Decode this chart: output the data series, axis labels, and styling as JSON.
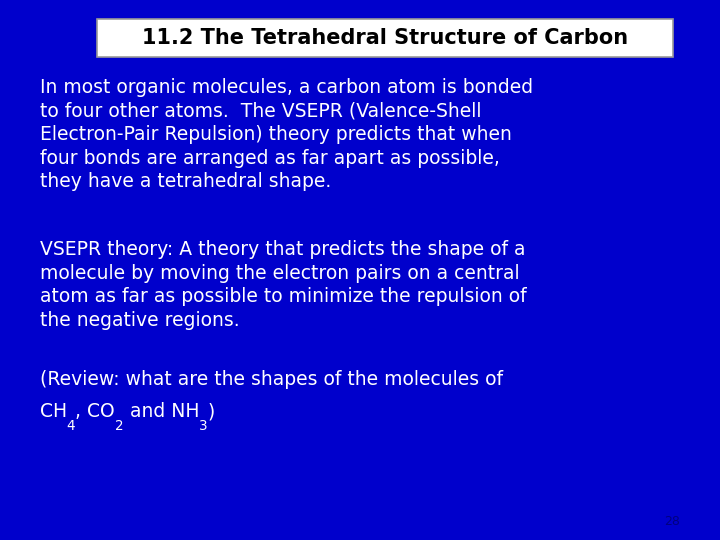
{
  "bg_color": "#0000CC",
  "title_text": "11.2 The Tetrahedral Structure of Carbon",
  "title_bg": "#FFFFFF",
  "title_border": "#999999",
  "title_color": "#000000",
  "title_fontsize": 15,
  "body_color": "#FFFFFF",
  "body_fontsize": 13.5,
  "page_number": "28",
  "page_color": "#000080",
  "paragraph1": "In most organic molecules, a carbon atom is bonded\nto four other atoms.  The VSEPR (Valence-Shell\nElectron-Pair Repulsion) theory predicts that when\nfour bonds are arranged as far apart as possible,\nthey have a tetrahedral shape.",
  "paragraph2": "VSEPR theory: A theory that predicts the shape of a\nmolecule by moving the electron pairs on a central\natom as far as possible to minimize the repulsion of\nthe negative regions.",
  "paragraph3_line1": "(Review: what are the shapes of the molecules of",
  "segment_data": [
    [
      "CH",
      false
    ],
    [
      "4",
      true
    ],
    [
      ", CO",
      false
    ],
    [
      "2",
      true
    ],
    [
      " and NH",
      false
    ],
    [
      "3",
      true
    ],
    [
      ")",
      false
    ]
  ]
}
